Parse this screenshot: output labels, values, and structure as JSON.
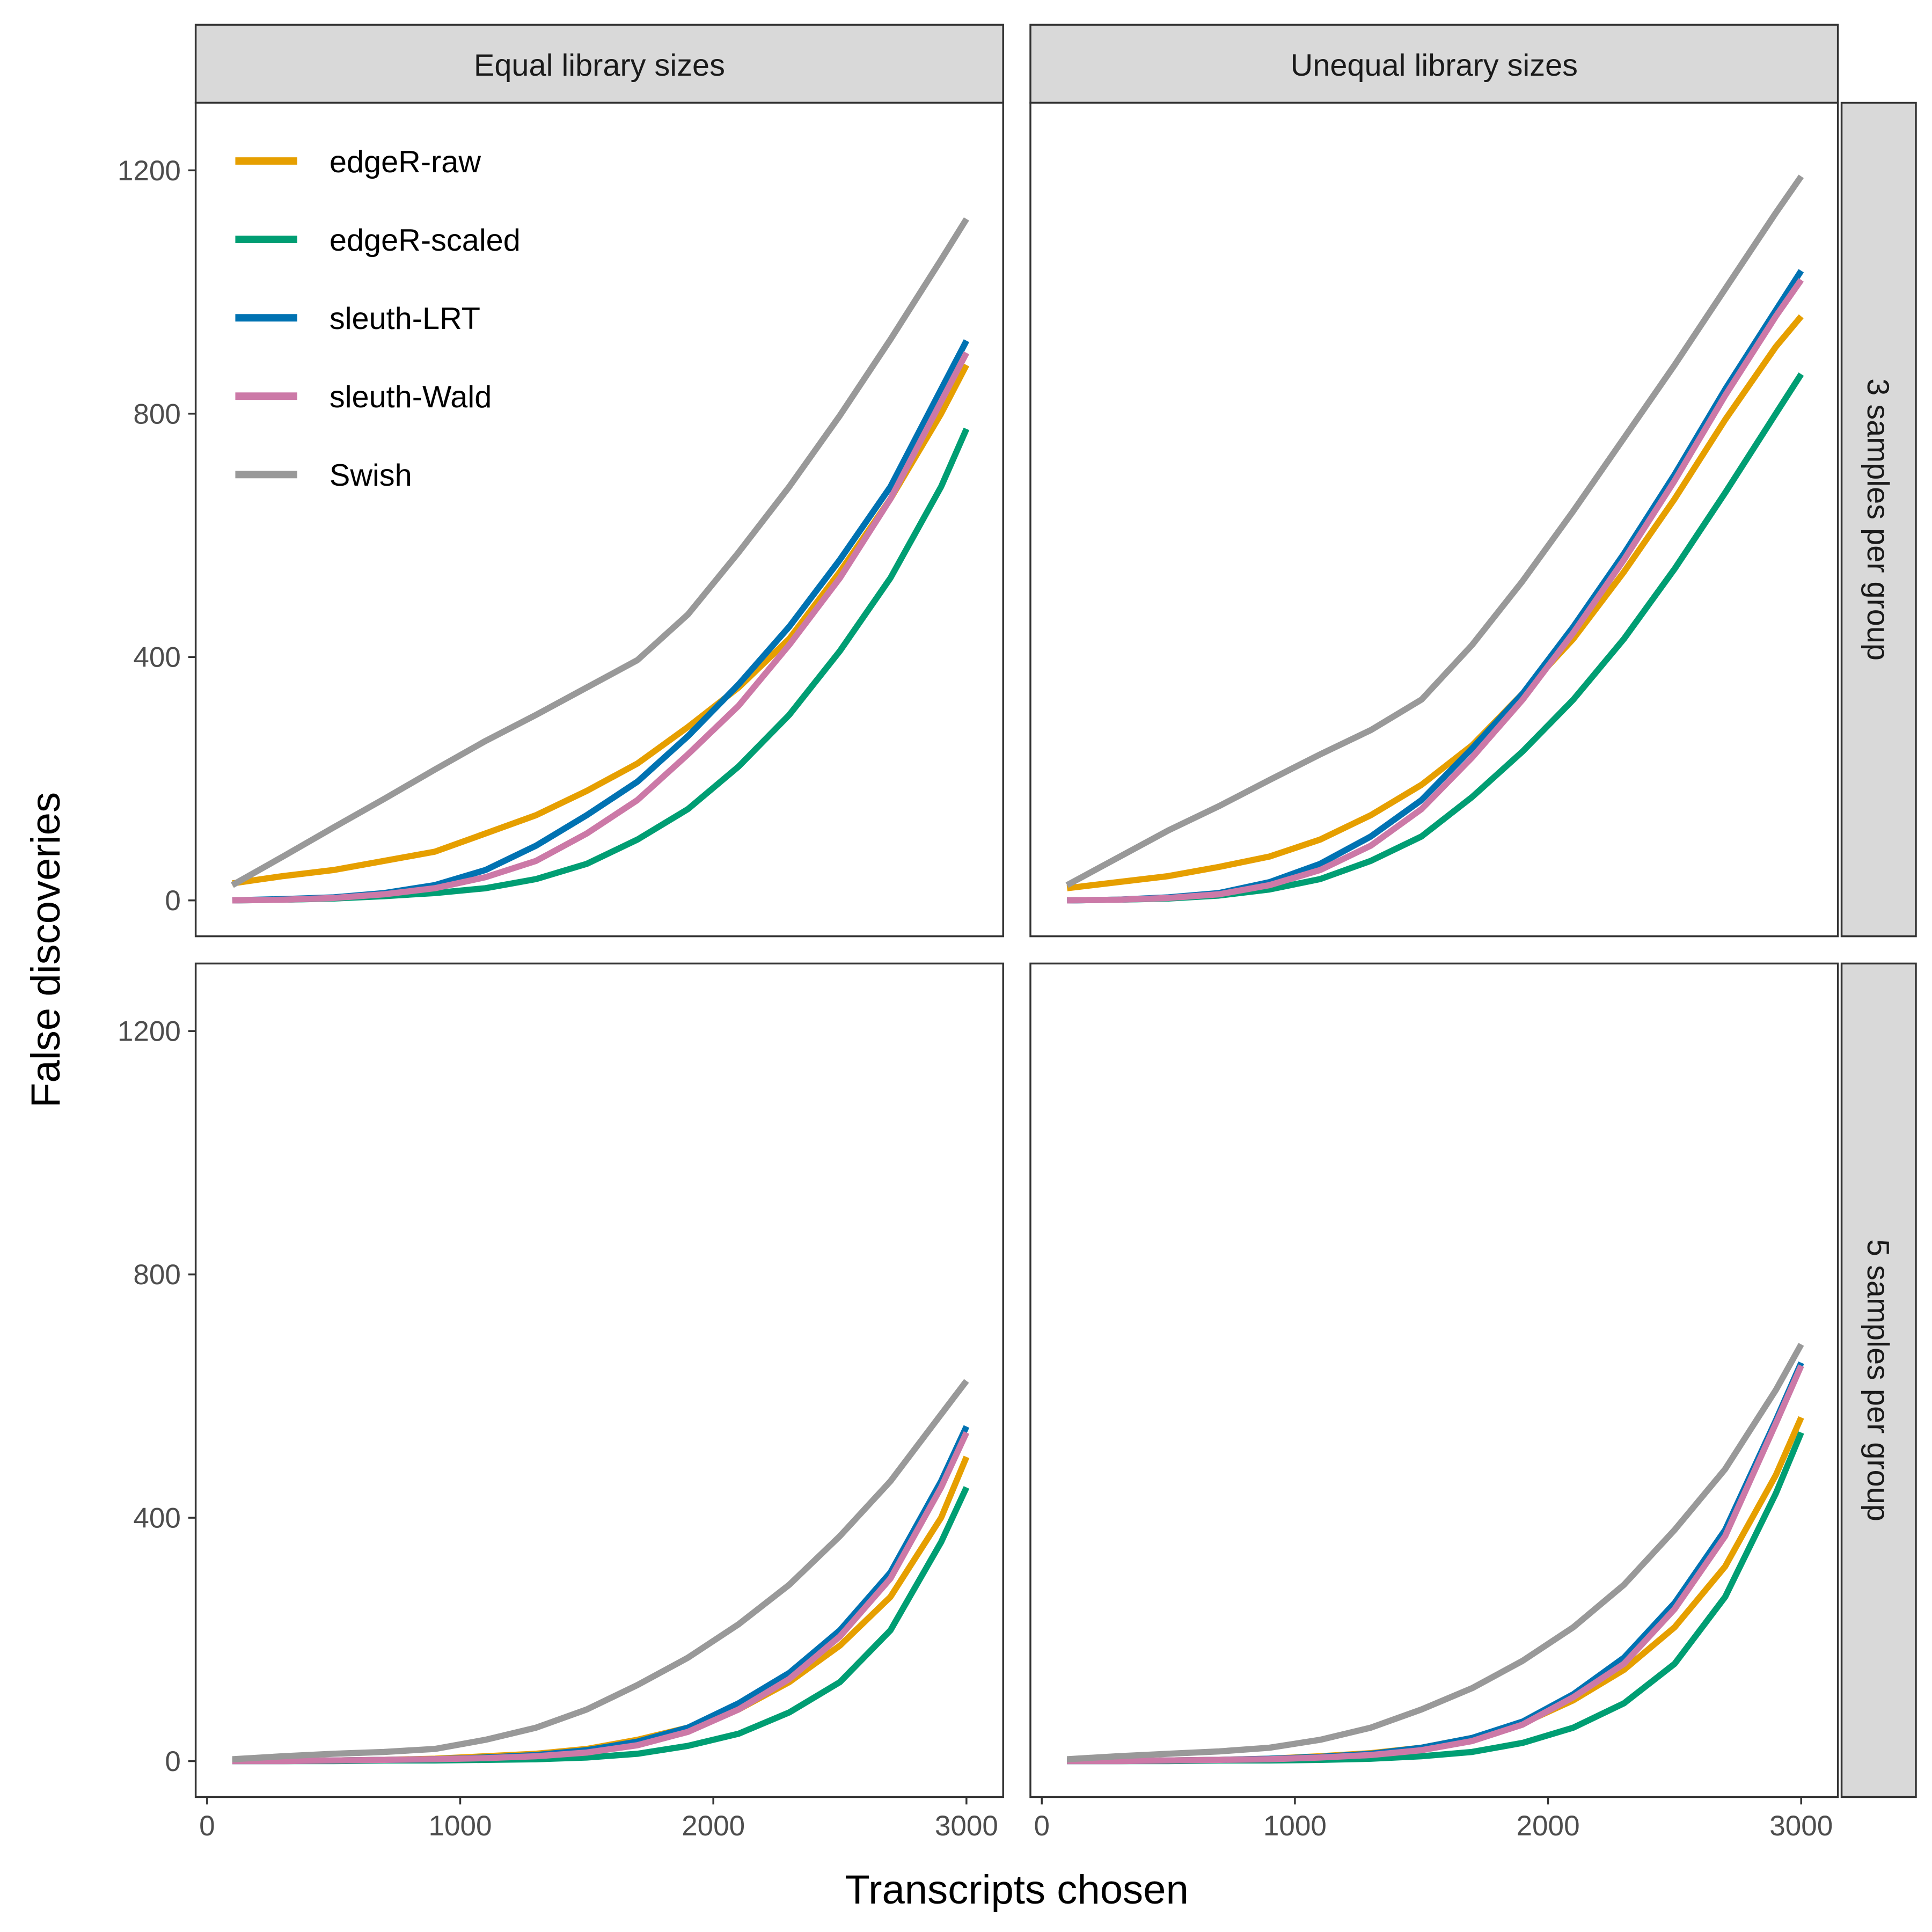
{
  "chart_data": {
    "type": "line",
    "xlabel": "Transcripts chosen",
    "ylabel": "False discoveries",
    "xlim": [
      -45,
      3145
    ],
    "ylim": [
      -59,
      1311
    ],
    "x_ticks": [
      0,
      1000,
      2000,
      3000
    ],
    "y_ticks": [
      0,
      400,
      800,
      1200
    ],
    "grid": false,
    "legend_position": "top-left inside first panel",
    "column_facets": [
      "Equal library sizes",
      "Unequal library sizes"
    ],
    "row_facets": [
      "3 samples per group",
      "5 samples per group"
    ],
    "legend": [
      {
        "name": "edgeR-raw",
        "color": "#E69F00"
      },
      {
        "name": "edgeR-scaled",
        "color": "#009E73"
      },
      {
        "name": "sleuth-LRT",
        "color": "#0072B2"
      },
      {
        "name": "sleuth-Wald",
        "color": "#CC79A7"
      },
      {
        "name": "Swish",
        "color": "#999999"
      }
    ],
    "x": [
      100,
      300,
      500,
      700,
      900,
      1100,
      1300,
      1500,
      1700,
      1900,
      2100,
      2300,
      2500,
      2700,
      2900,
      3000
    ],
    "panels": [
      {
        "col": "Equal library sizes",
        "row": "3 samples per group",
        "series": [
          {
            "name": "edgeR-raw",
            "values": [
              28,
              40,
              50,
              65,
              80,
              110,
              140,
              180,
              225,
              285,
              350,
              430,
              540,
              660,
              800,
              880
            ]
          },
          {
            "name": "edgeR-scaled",
            "values": [
              0,
              1,
              3,
              7,
              12,
              20,
              35,
              60,
              100,
              150,
              220,
              305,
              410,
              530,
              680,
              775
            ]
          },
          {
            "name": "sleuth-LRT",
            "values": [
              0,
              2,
              5,
              12,
              25,
              50,
              90,
              140,
              195,
              270,
              355,
              450,
              560,
              680,
              840,
              920
            ]
          },
          {
            "name": "sleuth-Wald",
            "values": [
              0,
              1,
              4,
              10,
              20,
              38,
              65,
              110,
              165,
              240,
              320,
              420,
              530,
              660,
              820,
              900
            ]
          },
          {
            "name": "Swish",
            "values": [
              25,
              72,
              120,
              167,
              215,
              262,
              305,
              350,
              395,
              470,
              572,
              680,
              797,
              922,
              1053,
              1120
            ]
          }
        ]
      },
      {
        "col": "Unequal library sizes",
        "row": "3 samples per group",
        "series": [
          {
            "name": "edgeR-raw",
            "values": [
              20,
              30,
              40,
              55,
              72,
              100,
              140,
              190,
              255,
              340,
              430,
              540,
              660,
              790,
              910,
              960
            ]
          },
          {
            "name": "edgeR-scaled",
            "values": [
              0,
              1,
              3,
              8,
              18,
              35,
              65,
              105,
              170,
              245,
              330,
              430,
              545,
              670,
              800,
              865
            ]
          },
          {
            "name": "sleuth-LRT",
            "values": [
              0,
              1,
              5,
              12,
              30,
              60,
              105,
              165,
              250,
              340,
              450,
              570,
              700,
              840,
              970,
              1035
            ]
          },
          {
            "name": "sleuth-Wald",
            "values": [
              0,
              1,
              4,
              10,
              25,
              50,
              90,
              150,
              235,
              330,
              440,
              560,
              690,
              830,
              960,
              1020
            ]
          },
          {
            "name": "Swish",
            "values": [
              25,
              70,
              115,
              155,
              198,
              240,
              280,
              330,
              420,
              525,
              640,
              760,
              880,
              1005,
              1130,
              1190
            ]
          }
        ]
      },
      {
        "col": "Equal library sizes",
        "row": "5 samples per group",
        "series": [
          {
            "name": "edgeR-raw",
            "values": [
              0,
              0,
              1,
              2,
              4,
              8,
              12,
              20,
              35,
              55,
              85,
              130,
              190,
              270,
              400,
              500
            ]
          },
          {
            "name": "edgeR-scaled",
            "values": [
              0,
              0,
              0,
              1,
              1,
              2,
              3,
              6,
              12,
              25,
              45,
              80,
              130,
              215,
              360,
              450
            ]
          },
          {
            "name": "sleuth-LRT",
            "values": [
              0,
              0,
              1,
              2,
              3,
              6,
              10,
              18,
              32,
              55,
              95,
              145,
              215,
              310,
              460,
              550
            ]
          },
          {
            "name": "sleuth-Wald",
            "values": [
              0,
              0,
              1,
              2,
              3,
              5,
              8,
              14,
              26,
              48,
              85,
              135,
              205,
              300,
              450,
              540
            ]
          },
          {
            "name": "Swish",
            "values": [
              3,
              8,
              12,
              15,
              20,
              35,
              55,
              85,
              125,
              170,
              225,
              290,
              370,
              460,
              570,
              625
            ]
          }
        ]
      },
      {
        "col": "Unequal library sizes",
        "row": "5 samples per group",
        "series": [
          {
            "name": "edgeR-raw",
            "values": [
              0,
              0,
              1,
              2,
              4,
              8,
              13,
              22,
              38,
              62,
              100,
              150,
              220,
              320,
              470,
              565
            ]
          },
          {
            "name": "edgeR-scaled",
            "values": [
              0,
              0,
              0,
              1,
              1,
              2,
              4,
              8,
              15,
              30,
              55,
              95,
              160,
              270,
              440,
              540
            ]
          },
          {
            "name": "sleuth-LRT",
            "values": [
              0,
              0,
              1,
              2,
              4,
              7,
              12,
              22,
              38,
              65,
              110,
              170,
              260,
              380,
              560,
              655
            ]
          },
          {
            "name": "sleuth-Wald",
            "values": [
              0,
              0,
              1,
              2,
              3,
              6,
              10,
              18,
              33,
              60,
              105,
              160,
              250,
              370,
              555,
              650
            ]
          },
          {
            "name": "Swish",
            "values": [
              3,
              8,
              12,
              16,
              22,
              35,
              55,
              85,
              120,
              165,
              220,
              290,
              380,
              480,
              610,
              685
            ]
          }
        ]
      }
    ]
  }
}
